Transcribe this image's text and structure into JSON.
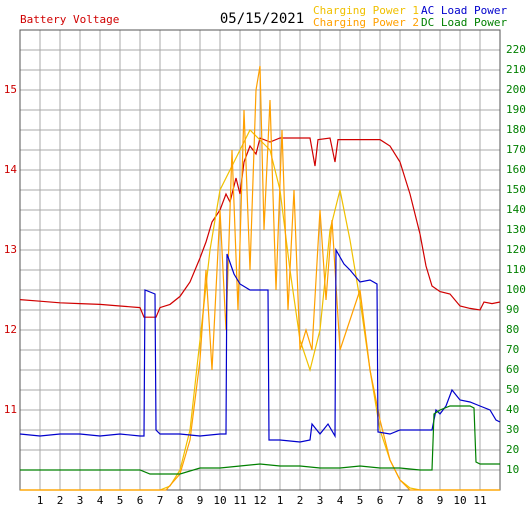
{
  "chart_data": {
    "type": "line",
    "title": "05/15/2021",
    "xlim": [
      0,
      24
    ],
    "xticks": [
      1,
      2,
      3,
      4,
      5,
      6,
      7,
      8,
      9,
      10,
      11,
      12,
      {
        "value": 13,
        "label": "1"
      },
      {
        "value": 14,
        "label": "2"
      },
      {
        "value": 15,
        "label": "3"
      },
      {
        "value": 16,
        "label": "4"
      },
      {
        "value": 17,
        "label": "5"
      },
      {
        "value": 18,
        "label": "6"
      },
      {
        "value": 19,
        "label": "7"
      },
      {
        "value": 20,
        "label": "8"
      },
      {
        "value": 21,
        "label": "9"
      },
      {
        "value": 22,
        "label": "10"
      },
      {
        "value": 23,
        "label": "11"
      }
    ],
    "ylim": [
      10,
      15.75
    ],
    "yticks": [
      11,
      12,
      13,
      14,
      15
    ],
    "y2lim": [
      0,
      230
    ],
    "y2ticks": [
      10,
      20,
      30,
      40,
      50,
      60,
      70,
      80,
      90,
      100,
      110,
      120,
      130,
      140,
      150,
      160,
      170,
      180,
      190,
      200,
      210,
      220
    ],
    "grid": true,
    "ytick_color": "#cc0000",
    "y2tick_color": "#008000",
    "series": [
      {
        "name": "Battery Voltage",
        "color": "#d00000",
        "x": [
          0,
          1,
          2,
          3,
          4,
          5,
          6,
          6.2,
          6.8,
          7,
          7.5,
          8,
          8.5,
          9,
          9.3,
          9.6,
          10,
          10.3,
          10.5,
          10.8,
          11,
          11.2,
          11.5,
          11.8,
          12,
          12.5,
          13,
          13.5,
          14,
          14.5,
          14.75,
          14.9,
          15.5,
          15.75,
          15.9,
          16.5,
          17,
          17.5,
          18,
          18.5,
          19,
          19.5,
          20,
          20.3,
          20.6,
          21,
          21.5,
          22,
          22.5,
          23,
          23.2,
          23.6,
          24
        ],
        "values": [
          12.38,
          12.36,
          12.34,
          12.33,
          12.32,
          12.3,
          12.28,
          12.16,
          12.16,
          12.28,
          12.32,
          12.42,
          12.6,
          12.9,
          13.1,
          13.35,
          13.5,
          13.7,
          13.6,
          13.9,
          13.7,
          14.1,
          14.3,
          14.2,
          14.4,
          14.35,
          14.4,
          14.4,
          14.4,
          14.4,
          14.05,
          14.38,
          14.4,
          14.1,
          14.38,
          14.38,
          14.38,
          14.38,
          14.38,
          14.3,
          14.1,
          13.7,
          13.2,
          12.8,
          12.55,
          12.48,
          12.45,
          12.3,
          12.27,
          12.25,
          12.35,
          12.33,
          12.35
        ]
      },
      {
        "name": "Charging Power 1",
        "color": "#f0c000",
        "axis": "y2",
        "x": [
          0,
          7,
          7.5,
          8,
          8.5,
          9,
          9.5,
          10,
          10.5,
          11,
          11.5,
          12,
          12.5,
          13,
          13.5,
          14,
          14.5,
          15,
          15.5,
          16,
          16.5,
          17,
          17.5,
          18,
          18.5,
          19,
          19.5,
          20,
          24
        ],
        "values": [
          0,
          0,
          2,
          10,
          30,
          75,
          120,
          150,
          160,
          170,
          180,
          175,
          170,
          150,
          110,
          75,
          60,
          80,
          130,
          150,
          125,
          95,
          60,
          30,
          15,
          5,
          1,
          0,
          0
        ]
      },
      {
        "name": "Charging Power 2",
        "color": "#ffa000",
        "axis": "y2",
        "x": [
          0,
          7.3,
          8,
          8.5,
          9,
          9.3,
          9.6,
          10,
          10.3,
          10.6,
          10.9,
          11.2,
          11.5,
          11.8,
          12,
          12.2,
          12.5,
          12.8,
          13.1,
          13.4,
          13.7,
          14,
          14.3,
          14.6,
          15,
          15.3,
          15.6,
          16,
          16.5,
          17,
          17.5,
          18,
          18.5,
          19,
          19.5,
          24
        ],
        "values": [
          0,
          0,
          8,
          25,
          65,
          110,
          60,
          140,
          80,
          170,
          90,
          190,
          110,
          200,
          212,
          130,
          195,
          100,
          180,
          90,
          150,
          70,
          80,
          70,
          140,
          95,
          135,
          70,
          85,
          100,
          60,
          35,
          15,
          5,
          0,
          0
        ]
      },
      {
        "name": "AC Load Power",
        "color": "#0000cc",
        "axis": "y2",
        "x": [
          0,
          1,
          2,
          3,
          4,
          5,
          6,
          6.2,
          6.25,
          6.75,
          6.8,
          7,
          8,
          9,
          10,
          10.3,
          10.35,
          10.7,
          11,
          11.5,
          12,
          12.4,
          12.45,
          13,
          14,
          14.5,
          14.6,
          15,
          15.4,
          15.75,
          15.8,
          16.2,
          16.5,
          17,
          17.5,
          17.85,
          17.9,
          18.5,
          19,
          20,
          20.6,
          20.8,
          21,
          21.3,
          21.6,
          22,
          22.5,
          23,
          23.5,
          23.8,
          24
        ],
        "values": [
          28,
          27,
          28,
          28,
          27,
          28,
          27,
          27,
          100,
          98,
          30,
          28,
          28,
          27,
          28,
          28,
          118,
          108,
          103,
          100,
          100,
          100,
          25,
          25,
          24,
          25,
          33,
          28,
          33,
          27,
          120,
          113,
          110,
          104,
          105,
          103,
          29,
          28,
          30,
          30,
          30,
          40,
          38,
          42,
          50,
          45,
          44,
          42,
          40,
          35,
          34
        ]
      },
      {
        "name": "DC Load Power",
        "color": "#008000",
        "axis": "y2",
        "x": [
          0,
          6,
          6.5,
          8,
          9,
          10,
          11,
          12,
          13,
          14,
          15,
          16,
          17,
          18,
          19,
          20,
          20.6,
          20.7,
          21,
          21.5,
          22,
          22.5,
          22.7,
          22.8,
          23,
          24
        ],
        "values": [
          10,
          10,
          8,
          8,
          11,
          11,
          12,
          13,
          12,
          12,
          11,
          11,
          12,
          11,
          11,
          10,
          10,
          38,
          40,
          42,
          42,
          42,
          41,
          14,
          13,
          13
        ]
      }
    ]
  }
}
